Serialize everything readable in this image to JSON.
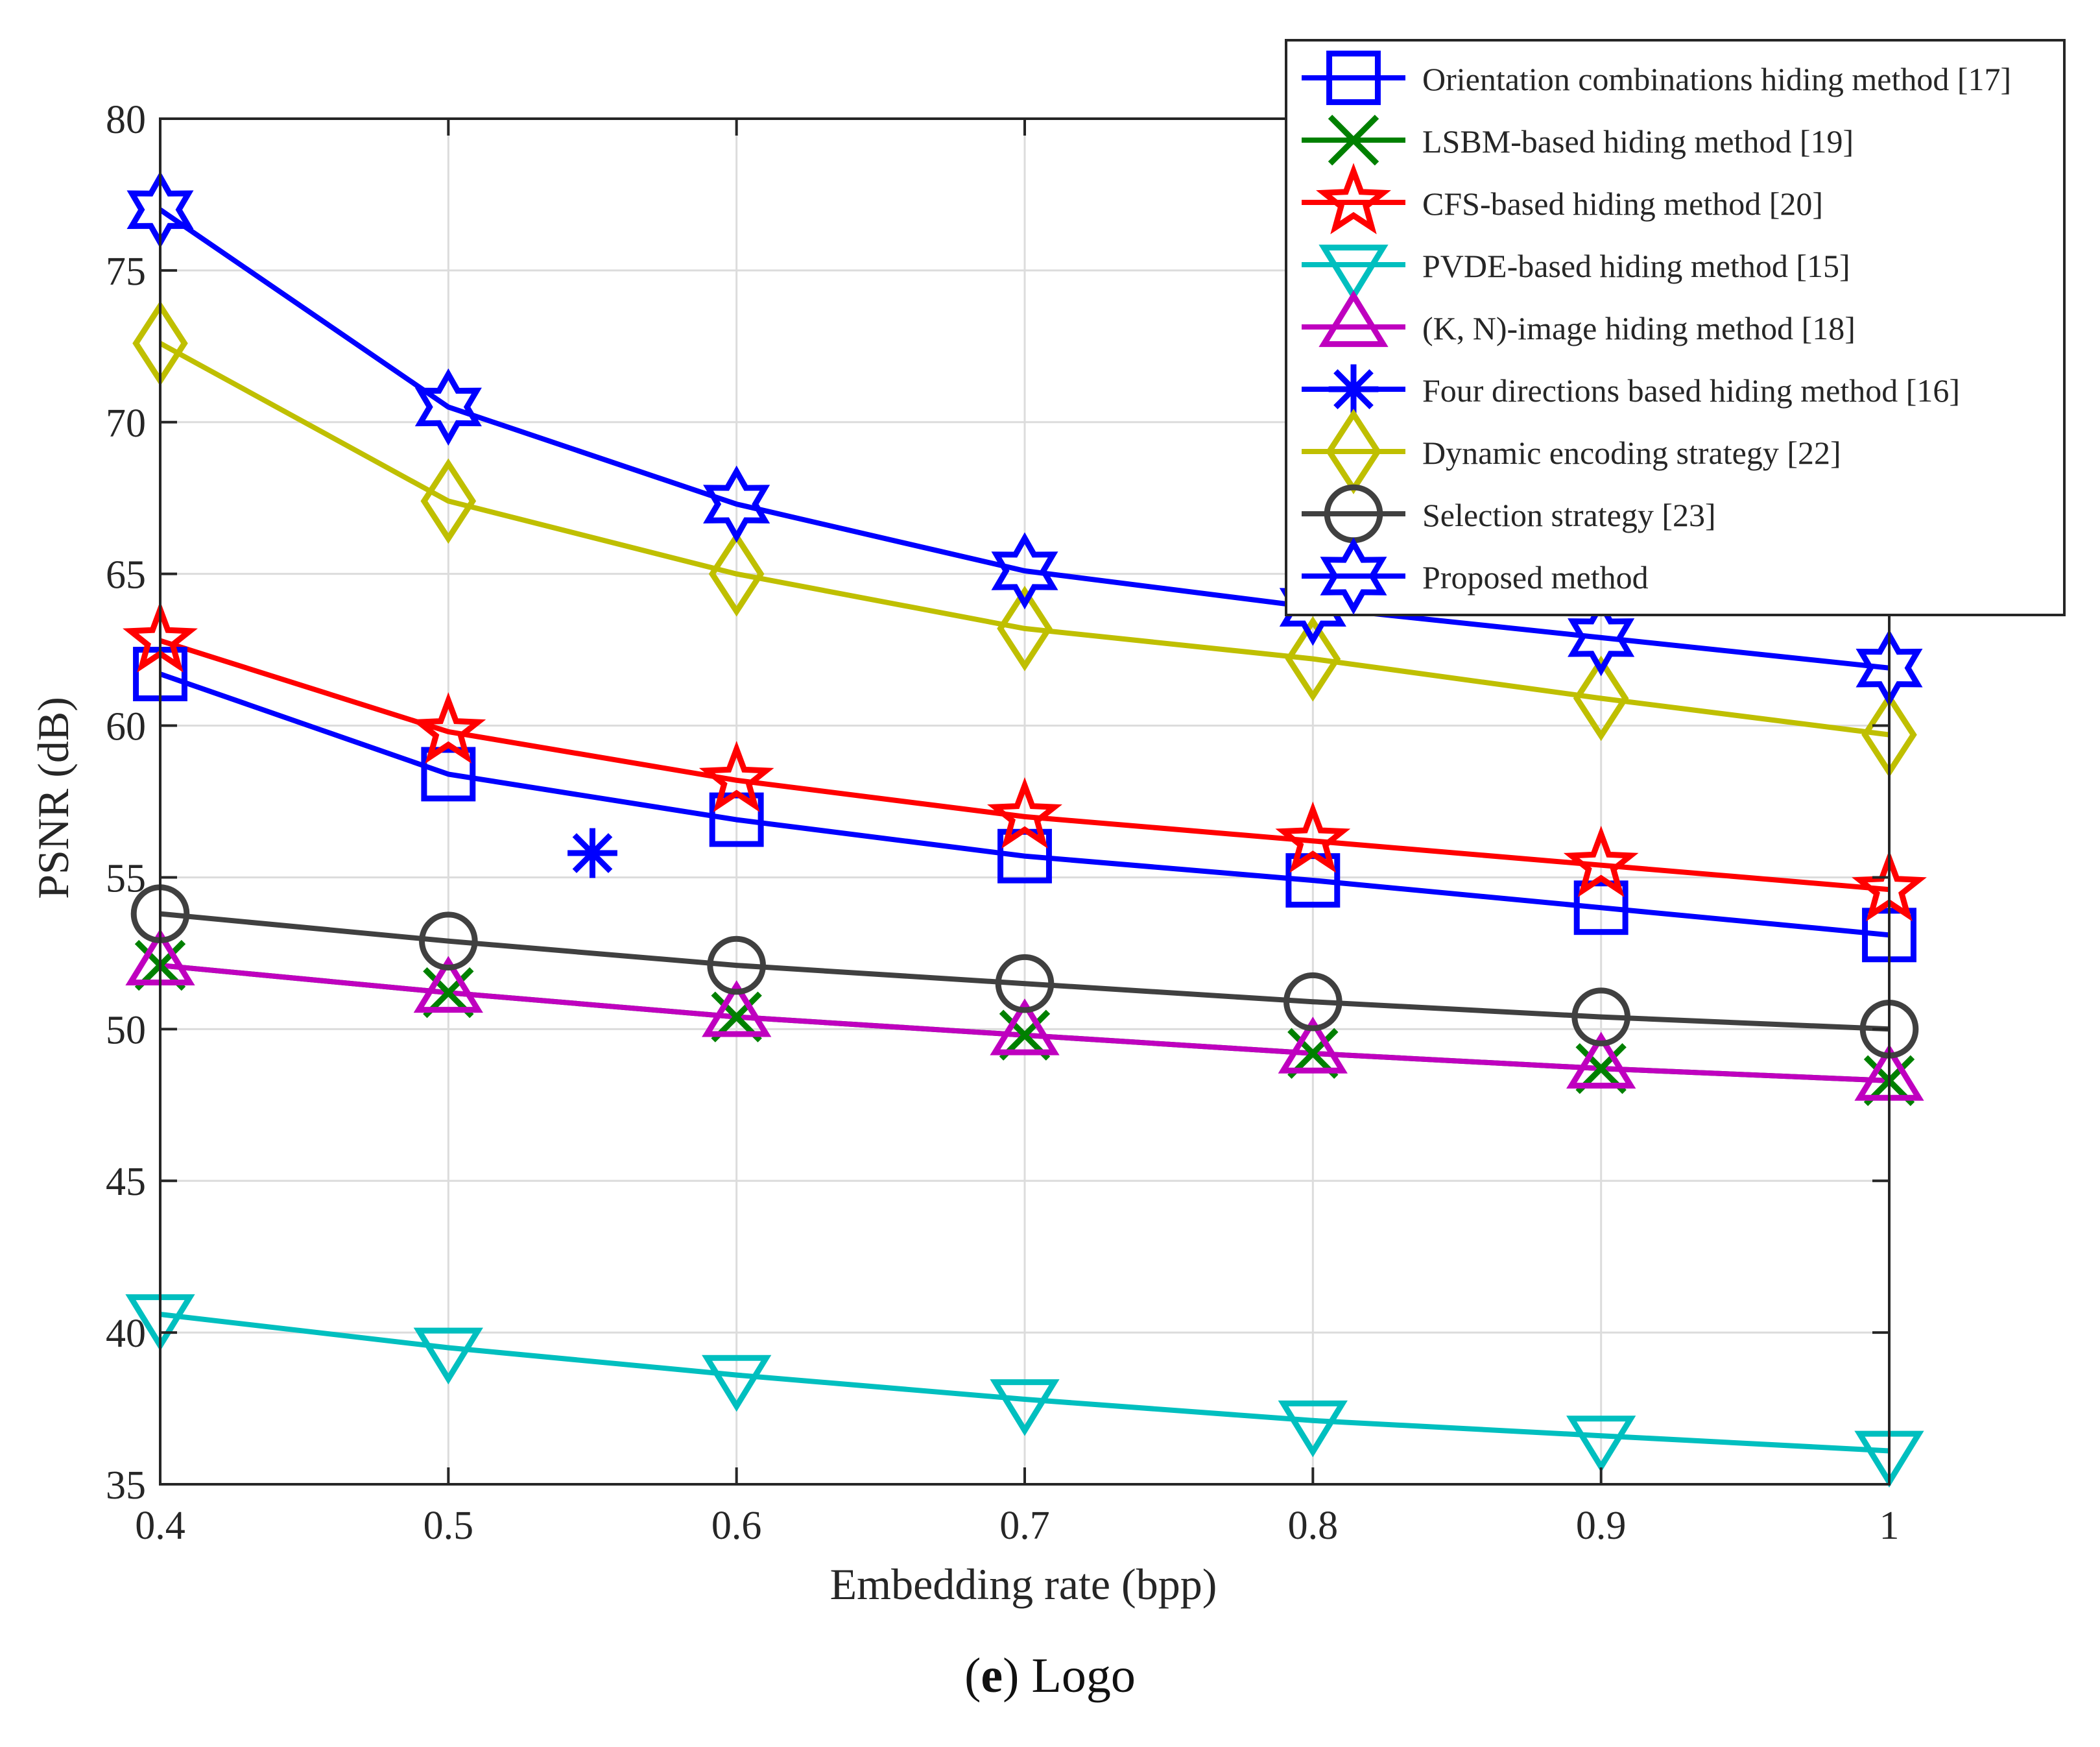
{
  "chart_data": {
    "type": "line",
    "xlabel": "Embedding rate (bpp)",
    "ylabel": "PSNR (dB)",
    "xlim": [
      0.4,
      1.0
    ],
    "ylim": [
      35,
      80
    ],
    "x_ticks": [
      "0.4",
      "0.5",
      "0.6",
      "0.7",
      "0.8",
      "0.9",
      "1"
    ],
    "y_ticks": [
      "35",
      "40",
      "45",
      "50",
      "55",
      "60",
      "65",
      "70",
      "75",
      "80"
    ],
    "grid": true,
    "legend_position": "top-right",
    "series": [
      {
        "name": "Orientation combinations hiding method [17]",
        "marker": "square",
        "color": "#0000ff",
        "x": [
          0.4,
          0.5,
          0.6,
          0.7,
          0.8,
          0.9,
          1.0
        ],
        "y": [
          61.7,
          58.4,
          56.9,
          55.7,
          54.9,
          54.0,
          53.1
        ]
      },
      {
        "name": "LSBM-based hiding method [19]",
        "marker": "x",
        "color": "#008000",
        "x": [
          0.4,
          0.5,
          0.6,
          0.7,
          0.8,
          0.9,
          1.0
        ],
        "y": [
          52.1,
          51.2,
          50.4,
          49.8,
          49.2,
          48.7,
          48.3
        ]
      },
      {
        "name": "CFS-based hiding method [20]",
        "marker": "pentagram",
        "color": "#ff0000",
        "x": [
          0.4,
          0.5,
          0.6,
          0.7,
          0.8,
          0.9,
          1.0
        ],
        "y": [
          62.8,
          59.8,
          58.2,
          57.0,
          56.2,
          55.4,
          54.6
        ]
      },
      {
        "name": "PVDE-based hiding method [15]",
        "marker": "triangle-down",
        "color": "#00bfbf",
        "x": [
          0.4,
          0.5,
          0.6,
          0.7,
          0.8,
          0.9,
          1.0
        ],
        "y": [
          40.6,
          39.5,
          38.6,
          37.8,
          37.1,
          36.6,
          36.1
        ]
      },
      {
        "name": "(K, N)-image hiding method [18]",
        "marker": "triangle-up",
        "color": "#bf00bf",
        "x": [
          0.4,
          0.5,
          0.6,
          0.7,
          0.8,
          0.9,
          1.0
        ],
        "y": [
          52.1,
          51.2,
          50.4,
          49.8,
          49.2,
          48.7,
          48.3
        ]
      },
      {
        "name": "Four directions based hiding method [16]",
        "marker": "asterisk",
        "color": "#0000ff",
        "x": [
          0.55
        ],
        "y": [
          55.8
        ]
      },
      {
        "name": "Dynamic encoding strategy [22]",
        "marker": "diamond",
        "color": "#bfbf00",
        "x": [
          0.4,
          0.5,
          0.6,
          0.7,
          0.8,
          0.9,
          1.0
        ],
        "y": [
          72.6,
          67.4,
          65.0,
          63.2,
          62.2,
          60.9,
          59.7
        ]
      },
      {
        "name": "Selection strategy [23]",
        "marker": "circle",
        "color": "#404040",
        "x": [
          0.4,
          0.5,
          0.6,
          0.7,
          0.8,
          0.9,
          1.0
        ],
        "y": [
          53.8,
          52.9,
          52.1,
          51.5,
          50.9,
          50.4,
          50.0
        ]
      },
      {
        "name": "Proposed method",
        "marker": "hexagram",
        "color": "#0000ff",
        "x": [
          0.4,
          0.5,
          0.6,
          0.7,
          0.8,
          0.9,
          1.0
        ],
        "y": [
          77.0,
          70.5,
          67.3,
          65.1,
          63.9,
          62.9,
          61.9
        ]
      }
    ]
  },
  "caption": {
    "letter": "e",
    "text": "Logo"
  }
}
